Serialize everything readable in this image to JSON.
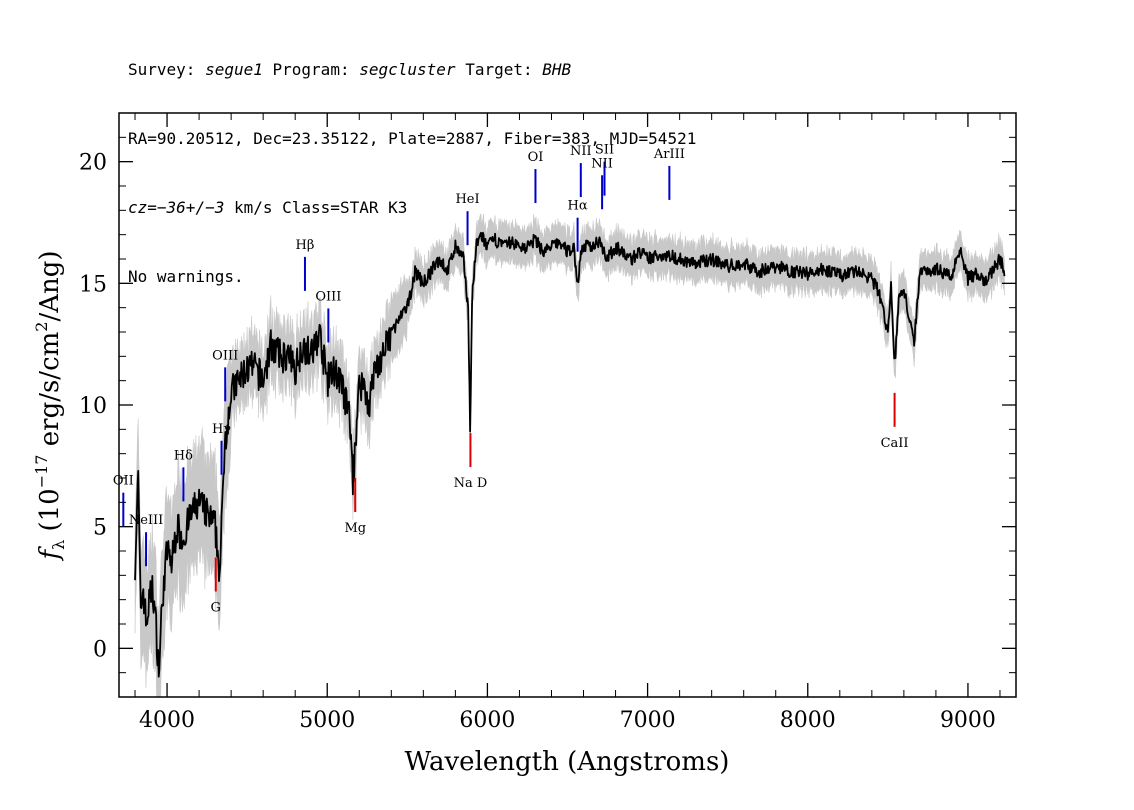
{
  "header": {
    "survey_label": "Survey:",
    "survey": "segue1",
    "program_label": "Program:",
    "program": "segcluster",
    "target_label": "Target:",
    "target": "BHB",
    "line2": "RA=90.20512, Dec=23.35122, Plate=2887, Fiber=383, MJD=54521",
    "cz_prefix": "cz=",
    "cz_value": "−36+/−3",
    "cz_suffix": " km/s Class=STAR K3",
    "line4": "No warnings."
  },
  "chart_data": {
    "type": "line",
    "xlabel": "Wavelength (Angstroms)",
    "ylabel_parts": {
      "f": "f",
      "sub": "λ",
      "mid": " (10",
      "exp": "−17",
      "tail": " erg/s/cm",
      "exp2": "2",
      "end": "/Ang)"
    },
    "xlim": [
      3700,
      9300
    ],
    "ylim": [
      -2,
      22
    ],
    "xticks": [
      4000,
      5000,
      6000,
      7000,
      8000,
      9000
    ],
    "yticks": [
      0,
      5,
      10,
      15,
      20
    ],
    "grid": false,
    "series": [
      {
        "color": "#000000",
        "error_band_color": "#c8c8c8",
        "x": [
          3800,
          3820,
          3835,
          3850,
          3870,
          3890,
          3910,
          3930,
          3950,
          3970,
          4000,
          4030,
          4060,
          4100,
          4150,
          4200,
          4250,
          4300,
          4330,
          4360,
          4400,
          4450,
          4500,
          4550,
          4600,
          4650,
          4700,
          4750,
          4800,
          4850,
          4900,
          4950,
          5000,
          5050,
          5100,
          5140,
          5160,
          5175,
          5190,
          5220,
          5260,
          5300,
          5350,
          5400,
          5450,
          5500,
          5550,
          5600,
          5650,
          5700,
          5750,
          5800,
          5850,
          5880,
          5892,
          5905,
          5930,
          5960,
          6000,
          6050,
          6100,
          6150,
          6200,
          6250,
          6300,
          6350,
          6400,
          6450,
          6500,
          6540,
          6563,
          6580,
          6600,
          6650,
          6700,
          6750,
          6800,
          6850,
          6900,
          6950,
          7000,
          7100,
          7200,
          7300,
          7400,
          7500,
          7600,
          7700,
          7800,
          7900,
          8000,
          8100,
          8200,
          8300,
          8400,
          8450,
          8498,
          8520,
          8542,
          8570,
          8600,
          8662,
          8700,
          8800,
          8900,
          8950,
          9000,
          9050,
          9100,
          9150,
          9200,
          9230
        ],
        "values": [
          3.5,
          7.0,
          1.5,
          2.5,
          1.0,
          2.0,
          2.5,
          1.0,
          -1.0,
          2.0,
          4.0,
          3.5,
          5.0,
          4.5,
          5.5,
          6.0,
          5.5,
          5.0,
          3.0,
          8.5,
          10.5,
          11.0,
          11.5,
          11.5,
          11.0,
          12.5,
          12.0,
          12.0,
          11.5,
          12.5,
          12.0,
          13.0,
          11.0,
          11.5,
          10.5,
          9.5,
          7.0,
          8.0,
          10.5,
          11.0,
          10.0,
          11.5,
          12.0,
          13.0,
          13.5,
          14.0,
          15.5,
          15.0,
          15.5,
          16.0,
          15.5,
          16.5,
          16.0,
          14.0,
          9.0,
          14.5,
          16.5,
          17.0,
          16.5,
          16.8,
          16.5,
          16.7,
          16.5,
          16.5,
          16.8,
          16.3,
          16.5,
          16.7,
          16.3,
          16.5,
          14.8,
          16.2,
          16.5,
          16.5,
          16.8,
          16.0,
          16.5,
          16.2,
          16.0,
          16.3,
          16.0,
          16.2,
          16.0,
          15.8,
          16.0,
          15.7,
          15.8,
          15.5,
          15.7,
          15.5,
          15.4,
          15.6,
          15.3,
          15.5,
          15.2,
          14.5,
          13.0,
          15.0,
          11.5,
          14.5,
          14.8,
          12.5,
          15.5,
          15.6,
          15.3,
          16.5,
          15.2,
          15.4,
          15.0,
          15.5,
          16.0,
          15.4
        ]
      }
    ],
    "emission_lines": [
      {
        "label": "OII",
        "wave": 3727
      },
      {
        "label": "NeIII",
        "wave": 3869
      },
      {
        "label": "Hδ",
        "wave": 4102
      },
      {
        "label": "Hγ",
        "wave": 4340
      },
      {
        "label": "OIII",
        "wave": 4363
      },
      {
        "label": "Hβ",
        "wave": 4861
      },
      {
        "label": "OIII",
        "wave": 5007
      },
      {
        "label": "HeI",
        "wave": 5876
      },
      {
        "label": "OI",
        "wave": 6300
      },
      {
        "label": "NII",
        "wave": 6583
      },
      {
        "label": "Hα",
        "wave": 6563
      },
      {
        "label": "SII",
        "wave": 6731
      },
      {
        "label": "NII",
        "wave": 6716
      },
      {
        "label": "ArIII",
        "wave": 7136
      }
    ],
    "absorption_lines": [
      {
        "label": "G",
        "wave": 4304
      },
      {
        "label": "Mg",
        "wave": 5175
      },
      {
        "label": "Na D",
        "wave": 5894
      },
      {
        "label": "CaII",
        "wave": 8542
      }
    ],
    "emission_color": "#0000cc",
    "absorption_color": "#dd0000"
  }
}
